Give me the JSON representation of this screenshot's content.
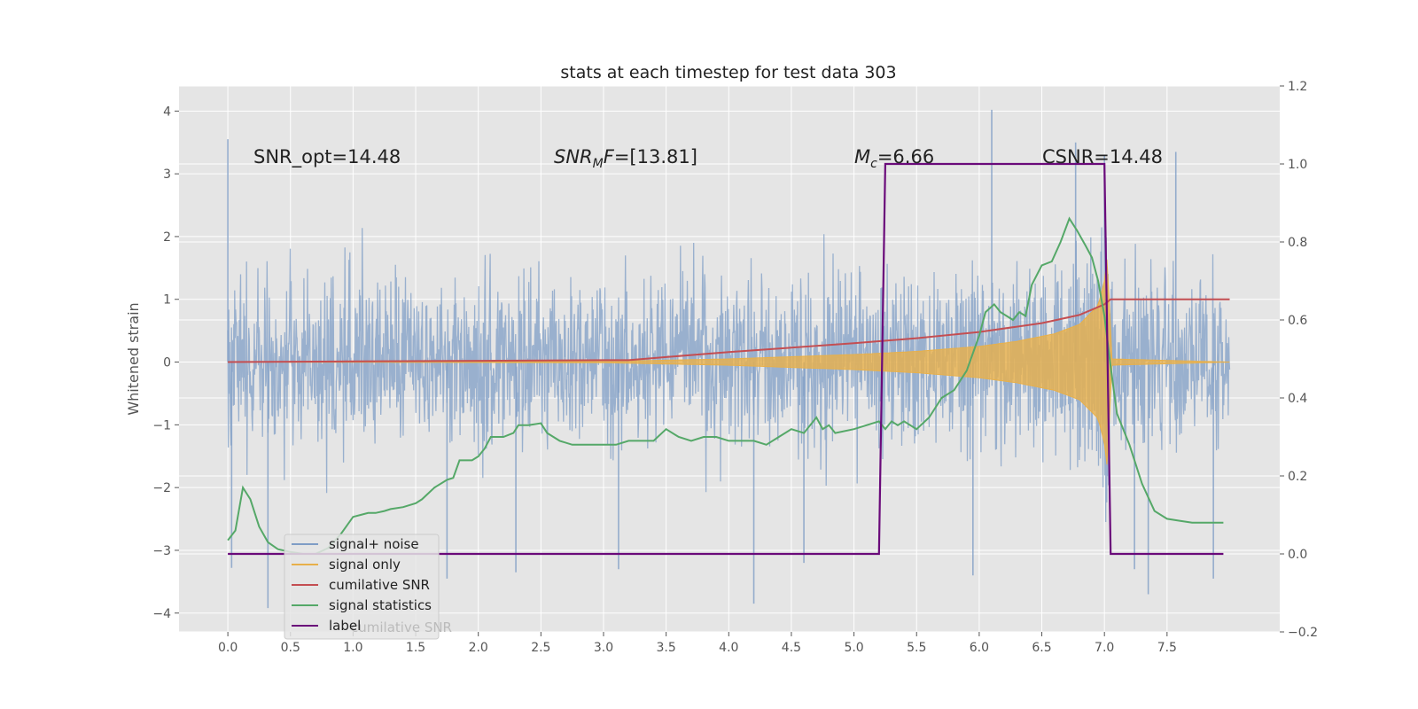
{
  "chart_data": {
    "type": "line",
    "title": "stats at each timestep for test data 303",
    "ylabel": "Whitened strain",
    "xlabel": "",
    "xlim": [
      -0.39,
      8.4
    ],
    "ylim": [
      -4.3,
      4.4
    ],
    "y2lim": [
      -0.2,
      1.2
    ],
    "x_ticks": [
      "0.0",
      "0.5",
      "1.0",
      "1.5",
      "2.0",
      "2.5",
      "3.0",
      "3.5",
      "4.0",
      "4.5",
      "5.0",
      "5.5",
      "6.0",
      "6.5",
      "7.0",
      "7.5"
    ],
    "y_ticks": [
      "4",
      "3",
      "2",
      "1",
      "0",
      "−1",
      "−2",
      "−3",
      "−4"
    ],
    "y2_ticks": [
      "1.2",
      "1.0",
      "0.8",
      "0.6",
      "0.4",
      "0.2",
      "0.0",
      "−0.2"
    ],
    "colors": {
      "noise": "#7f9dc6",
      "signal": "#e8b04a",
      "cumulative": "#c44e52",
      "statistics": "#55a868",
      "label": "#6a0a7a",
      "background": "#e5e5e5",
      "grid": "#ffffff"
    },
    "annotations": {
      "snr_opt": "SNR_opt=14.48",
      "snr_mf_name": "SNR",
      "snr_mf_sub": "M",
      "snr_mf_tail": "F",
      "snr_mf_value": "=[13.81]",
      "mc_name": "M",
      "mc_sub": "c",
      "mc_value": "=6.66",
      "csnr": "CSNR=14.48"
    },
    "legend": {
      "location": "lower-left",
      "entries": [
        {
          "key": "noise",
          "label": "signal+ noise"
        },
        {
          "key": "signal",
          "label": "signal only"
        },
        {
          "key": "cumulative",
          "label": "cumilative SNR"
        },
        {
          "key": "statistics",
          "label": "signal statistics"
        },
        {
          "key": "label",
          "label": "label"
        }
      ],
      "hidden_text": "cumilative SNR"
    },
    "series": {
      "noise": {
        "name": "signal+ noise",
        "axis": "left",
        "x_range": [
          0.0,
          8.0
        ],
        "typical_range": [
          -2.0,
          2.0
        ],
        "spikes": [
          {
            "x": 0.0,
            "y": 3.55
          },
          {
            "x": 0.03,
            "y": -3.28
          },
          {
            "x": 0.32,
            "y": -3.92
          },
          {
            "x": 1.75,
            "y": -3.45
          },
          {
            "x": 2.3,
            "y": -3.35
          },
          {
            "x": 3.12,
            "y": -3.3
          },
          {
            "x": 4.2,
            "y": -3.85
          },
          {
            "x": 4.6,
            "y": -3.2
          },
          {
            "x": 5.95,
            "y": -3.4
          },
          {
            "x": 6.1,
            "y": 4.02
          },
          {
            "x": 6.77,
            "y": 3.5
          },
          {
            "x": 7.0,
            "y": 3.3
          },
          {
            "x": 7.24,
            "y": -3.3
          },
          {
            "x": 7.35,
            "y": -3.7
          },
          {
            "x": 7.57,
            "y": 3.35
          },
          {
            "x": 7.87,
            "y": -3.45
          }
        ]
      },
      "signal": {
        "name": "signal only",
        "axis": "left",
        "x": [
          0.0,
          3.0,
          4.0,
          5.0,
          5.5,
          6.0,
          6.3,
          6.6,
          6.8,
          6.95,
          7.0,
          7.03,
          7.05,
          8.0
        ],
        "envelope": [
          0.0,
          0.01,
          0.05,
          0.12,
          0.17,
          0.25,
          0.33,
          0.45,
          0.6,
          0.9,
          1.3,
          1.8,
          0.05,
          0.0
        ]
      },
      "cumulative": {
        "name": "cumilative SNR",
        "axis": "left",
        "x": [
          0.0,
          1.0,
          2.0,
          3.0,
          3.2,
          3.5,
          4.0,
          4.5,
          5.0,
          5.5,
          6.0,
          6.5,
          6.8,
          7.0,
          7.05,
          8.0
        ],
        "y": [
          0.0,
          0.01,
          0.02,
          0.03,
          0.03,
          0.08,
          0.16,
          0.23,
          0.3,
          0.38,
          0.48,
          0.62,
          0.75,
          0.92,
          1.0,
          1.0
        ]
      },
      "statistics": {
        "name": "signal statistics",
        "axis": "right",
        "x": [
          0.0,
          0.06,
          0.12,
          0.18,
          0.25,
          0.32,
          0.4,
          0.5,
          0.6,
          0.7,
          0.8,
          0.9,
          1.0,
          1.06,
          1.12,
          1.18,
          1.25,
          1.3,
          1.4,
          1.5,
          1.55,
          1.65,
          1.75,
          1.8,
          1.85,
          1.95,
          2.0,
          2.05,
          2.1,
          2.2,
          2.28,
          2.32,
          2.4,
          2.5,
          2.55,
          2.65,
          2.75,
          2.85,
          3.0,
          3.1,
          3.2,
          3.3,
          3.4,
          3.5,
          3.6,
          3.7,
          3.8,
          3.9,
          4.0,
          4.1,
          4.2,
          4.3,
          4.4,
          4.5,
          4.6,
          4.7,
          4.75,
          4.8,
          4.85,
          5.0,
          5.1,
          5.2,
          5.25,
          5.3,
          5.35,
          5.4,
          5.5,
          5.6,
          5.7,
          5.8,
          5.9,
          6.0,
          6.05,
          6.12,
          6.17,
          6.22,
          6.27,
          6.32,
          6.37,
          6.42,
          6.5,
          6.58,
          6.65,
          6.72,
          6.78,
          6.85,
          6.9,
          6.95,
          7.0,
          7.05,
          7.1,
          7.2,
          7.3,
          7.4,
          7.5,
          7.6,
          7.7,
          7.8,
          7.9,
          7.95
        ],
        "y": [
          0.035,
          0.06,
          0.17,
          0.14,
          0.07,
          0.03,
          0.012,
          0.005,
          0.0,
          0.0,
          0.015,
          0.05,
          0.095,
          0.1,
          0.105,
          0.105,
          0.11,
          0.115,
          0.12,
          0.13,
          0.14,
          0.17,
          0.19,
          0.195,
          0.24,
          0.24,
          0.25,
          0.27,
          0.3,
          0.3,
          0.31,
          0.33,
          0.33,
          0.335,
          0.31,
          0.29,
          0.28,
          0.28,
          0.28,
          0.28,
          0.29,
          0.29,
          0.29,
          0.32,
          0.3,
          0.29,
          0.3,
          0.3,
          0.29,
          0.29,
          0.29,
          0.28,
          0.3,
          0.32,
          0.31,
          0.35,
          0.32,
          0.33,
          0.31,
          0.32,
          0.33,
          0.34,
          0.32,
          0.34,
          0.33,
          0.34,
          0.32,
          0.35,
          0.4,
          0.42,
          0.47,
          0.56,
          0.62,
          0.64,
          0.62,
          0.61,
          0.6,
          0.62,
          0.61,
          0.69,
          0.74,
          0.75,
          0.8,
          0.86,
          0.83,
          0.79,
          0.76,
          0.7,
          0.61,
          0.48,
          0.36,
          0.28,
          0.18,
          0.11,
          0.09,
          0.085,
          0.08,
          0.08,
          0.08,
          0.08
        ]
      },
      "label": {
        "name": "label",
        "axis": "right",
        "x": [
          0.0,
          5.2,
          5.25,
          7.0,
          7.05,
          7.95
        ],
        "y": [
          0.0,
          0.0,
          1.0,
          1.0,
          0.0,
          0.0
        ]
      }
    }
  }
}
